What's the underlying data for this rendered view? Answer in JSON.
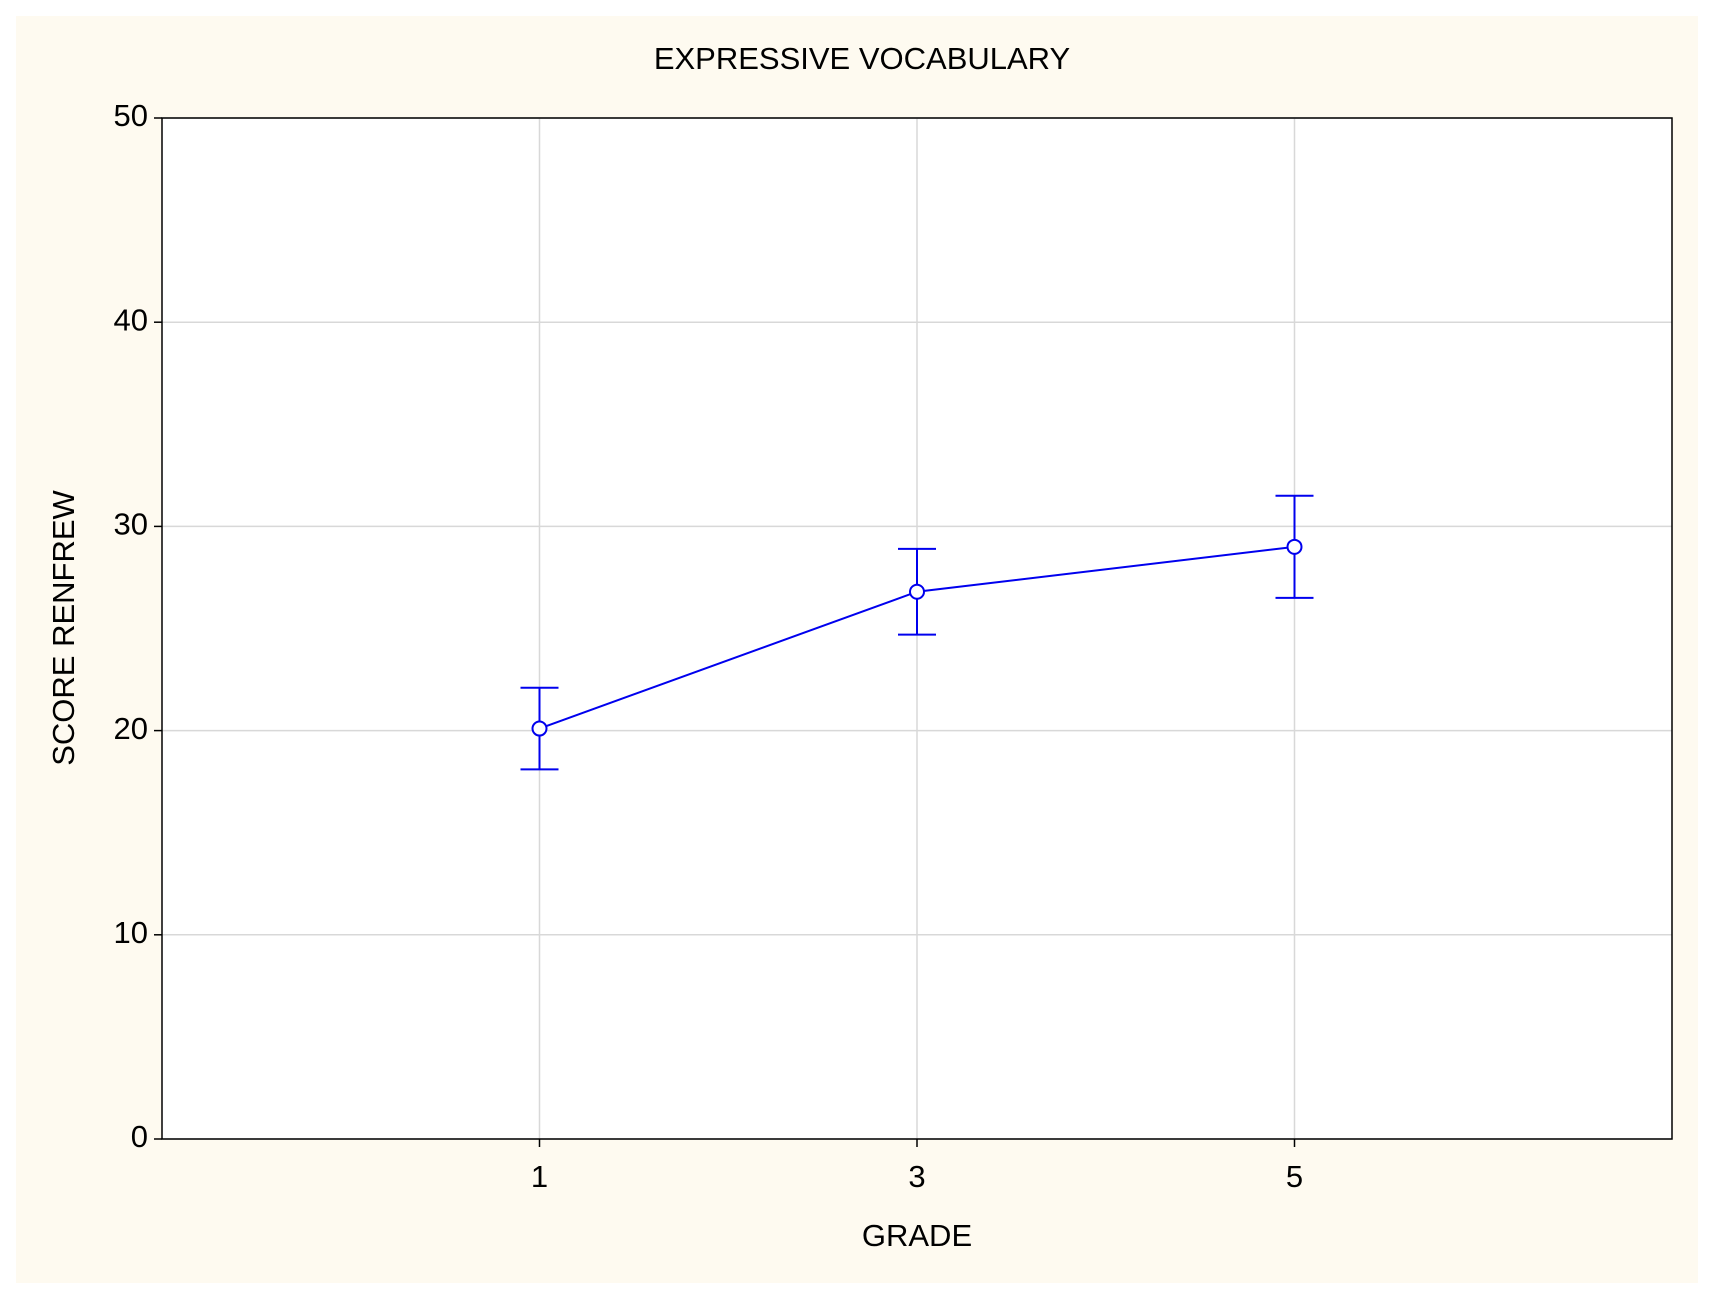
{
  "chart_data": {
    "type": "line",
    "title": "EXPRESSIVE VOCABULARY",
    "x_label": "GRADE",
    "y_label": "SCORE RENFREW",
    "categories": [
      "1",
      "3",
      "5"
    ],
    "series": [
      {
        "name": "SCORE RENFREW",
        "color": "#0000ee",
        "values": [
          20.1,
          26.8,
          29.0
        ],
        "errors": [
          2.0,
          2.1,
          2.5
        ]
      }
    ],
    "ylim": [
      0,
      50
    ],
    "yticks": [
      0,
      10,
      20,
      30,
      40,
      50
    ],
    "grid": true
  }
}
